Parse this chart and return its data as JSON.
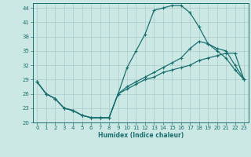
{
  "xlabel": "Humidex (Indice chaleur)",
  "background_color": "#cce8e4",
  "grid_color": "#aacccc",
  "line_color": "#1a7070",
  "xlim": [
    -0.5,
    23.5
  ],
  "ylim": [
    20,
    45
  ],
  "xticks": [
    0,
    1,
    2,
    3,
    4,
    5,
    6,
    7,
    8,
    9,
    10,
    11,
    12,
    13,
    14,
    15,
    16,
    17,
    18,
    19,
    20,
    21,
    22,
    23
  ],
  "yticks": [
    20,
    23,
    26,
    29,
    32,
    35,
    38,
    41,
    44
  ],
  "curve1_x": [
    0,
    1,
    2,
    3,
    4,
    5,
    6,
    7,
    8,
    9,
    10,
    11,
    12,
    13,
    14,
    15,
    16,
    17,
    18,
    19,
    20,
    21,
    22,
    23
  ],
  "curve1_y": [
    28.5,
    26.0,
    25.0,
    23.0,
    22.5,
    21.5,
    21.0,
    21.0,
    21.0,
    26.0,
    31.5,
    35.0,
    38.5,
    43.5,
    44.0,
    44.5,
    44.5,
    43.0,
    40.0,
    36.5,
    35.5,
    35.0,
    32.0,
    29.0
  ],
  "curve2_x": [
    0,
    1,
    2,
    3,
    4,
    5,
    6,
    7,
    8,
    9,
    10,
    11,
    12,
    13,
    14,
    15,
    16,
    17,
    18,
    19,
    20,
    21,
    22,
    23
  ],
  "curve2_y": [
    28.5,
    26.0,
    25.0,
    23.0,
    22.5,
    21.5,
    21.0,
    21.0,
    21.0,
    26.0,
    27.5,
    28.5,
    29.5,
    30.5,
    31.5,
    32.5,
    33.5,
    35.5,
    37.0,
    36.5,
    35.0,
    33.5,
    31.0,
    29.0
  ],
  "curve3_x": [
    0,
    1,
    2,
    3,
    4,
    5,
    6,
    7,
    8,
    9,
    10,
    11,
    12,
    13,
    14,
    15,
    16,
    17,
    18,
    19,
    20,
    21,
    22,
    23
  ],
  "curve3_y": [
    28.5,
    26.0,
    25.0,
    23.0,
    22.5,
    21.5,
    21.0,
    21.0,
    21.0,
    26.0,
    27.0,
    28.0,
    29.0,
    29.5,
    30.5,
    31.0,
    31.5,
    32.0,
    33.0,
    33.5,
    34.0,
    34.5,
    34.5,
    29.0
  ]
}
